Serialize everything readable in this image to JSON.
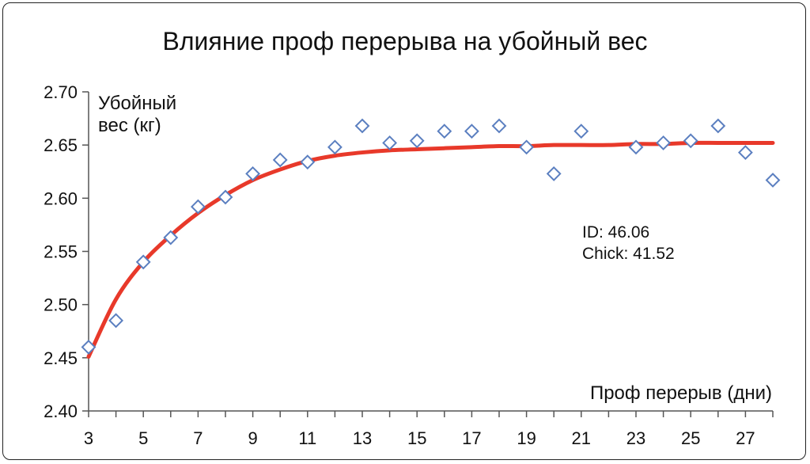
{
  "chart_data": {
    "type": "scatter",
    "title": "Влияние проф перерыва на убойный вес",
    "ylabel_lines": [
      "Убойный",
      "вес (кг)"
    ],
    "xlabel": "Проф перерыв (дни)",
    "annotation_lines": [
      "ID: 46.06",
      "Chick: 41.52"
    ],
    "xlim": [
      3,
      28
    ],
    "ylim": [
      2.4,
      2.7
    ],
    "x_ticks": [
      3,
      5,
      7,
      9,
      11,
      13,
      15,
      17,
      19,
      21,
      23,
      25,
      27
    ],
    "y_ticks": [
      "2.40",
      "2.45",
      "2.50",
      "2.55",
      "2.60",
      "2.65",
      "2.70"
    ],
    "grid": false,
    "series": [
      {
        "marker": "diamond",
        "color": "#5b7fc0",
        "x": [
          3,
          4,
          5,
          6,
          7,
          8,
          9,
          10,
          11,
          12,
          13,
          14,
          15,
          16,
          17,
          18,
          19,
          20,
          21,
          23,
          24,
          25,
          26,
          27,
          28
        ],
        "y": [
          2.46,
          2.485,
          2.54,
          2.563,
          2.592,
          2.601,
          2.623,
          2.636,
          2.634,
          2.648,
          2.668,
          2.652,
          2.654,
          2.663,
          2.663,
          2.668,
          2.648,
          2.623,
          2.663,
          2.648,
          2.652,
          2.654,
          2.668,
          2.643,
          2.617
        ]
      },
      {
        "marker": "none",
        "line": "fit",
        "color": "#e8392a",
        "x": [
          3,
          4,
          5,
          6,
          7,
          8,
          9,
          10,
          11,
          12,
          13,
          14,
          15,
          16,
          17,
          18,
          19,
          20,
          21,
          22,
          23,
          24,
          25,
          26,
          27,
          28
        ],
        "y": [
          2.451,
          2.505,
          2.54,
          2.565,
          2.586,
          2.603,
          2.617,
          2.627,
          2.635,
          2.64,
          2.643,
          2.645,
          2.646,
          2.647,
          2.648,
          2.649,
          2.649,
          2.65,
          2.65,
          2.65,
          2.651,
          2.651,
          2.652,
          2.652,
          2.652,
          2.652
        ]
      }
    ]
  }
}
